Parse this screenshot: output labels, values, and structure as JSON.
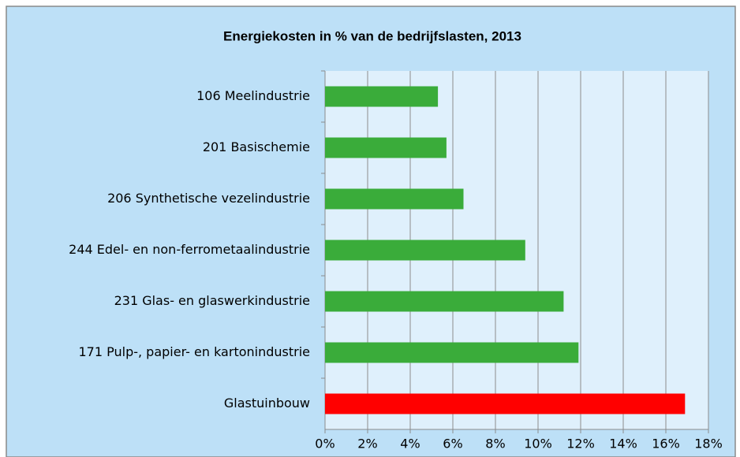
{
  "chart_data": {
    "type": "barh",
    "title": "Energiekosten in % van de bedrijfslasten, 2013",
    "categories": [
      "106 Meelindustrie",
      "201 Basischemie",
      "206 Synthetische vezelindustrie",
      "244 Edel- en non-ferrometaalindustrie",
      "231 Glas- en glaswerkindustrie",
      "171 Pulp-, papier- en kartonindustrie",
      "Glastuinbouw"
    ],
    "values": [
      5.3,
      5.7,
      6.5,
      9.4,
      11.2,
      11.9,
      16.9
    ],
    "colors": [
      "#3aac3a",
      "#3aac3a",
      "#3aac3a",
      "#3aac3a",
      "#3aac3a",
      "#3aac3a",
      "#ff0000"
    ],
    "xlim": [
      0,
      18
    ],
    "xticks": [
      {
        "value": 0,
        "label": "0%"
      },
      {
        "value": 2,
        "label": "2%"
      },
      {
        "value": 4,
        "label": "4%"
      },
      {
        "value": 6,
        "label": "6%"
      },
      {
        "value": 8,
        "label": "8%"
      },
      {
        "value": 10,
        "label": "10%"
      },
      {
        "value": 12,
        "label": "12%"
      },
      {
        "value": 14,
        "label": "14%"
      },
      {
        "value": 16,
        "label": "16%"
      },
      {
        "value": 18,
        "label": "18%"
      }
    ],
    "grid": true
  }
}
